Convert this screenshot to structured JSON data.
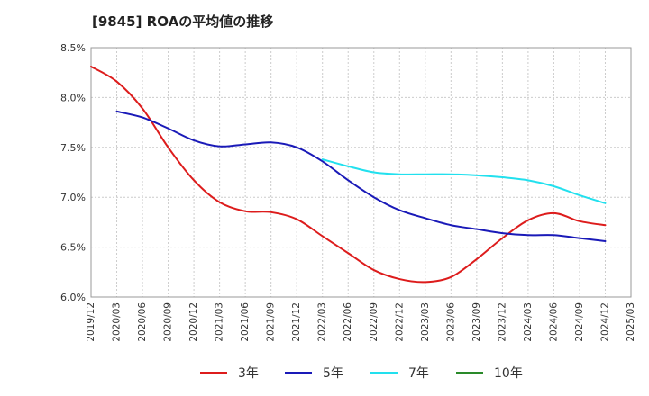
{
  "chart_data": {
    "type": "line",
    "title": "[9845]  ROAの平均値の推移",
    "xlabel": "",
    "ylabel": "",
    "ylim": [
      6.0,
      8.5
    ],
    "yticks": [
      "6.0%",
      "6.5%",
      "7.0%",
      "7.5%",
      "8.0%",
      "8.5%"
    ],
    "ytick_values": [
      6.0,
      6.5,
      7.0,
      7.5,
      8.0,
      8.5
    ],
    "xticks": [
      "2019/12",
      "2020/03",
      "2020/06",
      "2020/09",
      "2020/12",
      "2021/03",
      "2021/06",
      "2021/09",
      "2021/12",
      "2022/03",
      "2022/06",
      "2022/09",
      "2022/12",
      "2023/03",
      "2023/06",
      "2023/09",
      "2023/12",
      "2024/03",
      "2024/06",
      "2024/09",
      "2024/12",
      "2025/03"
    ],
    "grid": true,
    "legend_position": "bottom",
    "series": [
      {
        "name": "3年",
        "color": "#dd1c1c",
        "x": [
          "2019/12",
          "2020/03",
          "2020/06",
          "2020/09",
          "2020/12",
          "2021/03",
          "2021/06",
          "2021/09",
          "2021/12",
          "2022/03",
          "2022/06",
          "2022/09",
          "2022/12",
          "2023/03",
          "2023/06",
          "2023/09",
          "2023/12",
          "2024/03",
          "2024/06",
          "2024/09",
          "2024/12"
        ],
        "values": [
          8.31,
          8.16,
          7.89,
          7.5,
          7.17,
          6.95,
          6.86,
          6.85,
          6.78,
          6.61,
          6.44,
          6.27,
          6.18,
          6.15,
          6.2,
          6.38,
          6.59,
          6.77,
          6.84,
          6.76,
          6.72
        ]
      },
      {
        "name": "5年",
        "color": "#1a1ab8",
        "x": [
          "2020/03",
          "2020/06",
          "2020/09",
          "2020/12",
          "2021/03",
          "2021/06",
          "2021/09",
          "2021/12",
          "2022/03",
          "2022/06",
          "2022/09",
          "2022/12",
          "2023/03",
          "2023/06",
          "2023/09",
          "2023/12",
          "2024/03",
          "2024/06",
          "2024/09",
          "2024/12"
        ],
        "values": [
          7.86,
          7.8,
          7.69,
          7.57,
          7.51,
          7.53,
          7.55,
          7.5,
          7.36,
          7.17,
          7.0,
          6.87,
          6.79,
          6.72,
          6.68,
          6.64,
          6.62,
          6.62,
          6.59,
          6.56
        ]
      },
      {
        "name": "7年",
        "color": "#22e0ee",
        "x": [
          "2022/03",
          "2022/06",
          "2022/09",
          "2022/12",
          "2023/03",
          "2023/06",
          "2023/09",
          "2023/12",
          "2024/03",
          "2024/06",
          "2024/09",
          "2024/12"
        ],
        "values": [
          7.38,
          7.31,
          7.25,
          7.23,
          7.23,
          7.23,
          7.22,
          7.2,
          7.17,
          7.11,
          7.02,
          6.94
        ]
      },
      {
        "name": "10年",
        "color": "#2a8a2a",
        "x": [],
        "values": []
      }
    ]
  }
}
